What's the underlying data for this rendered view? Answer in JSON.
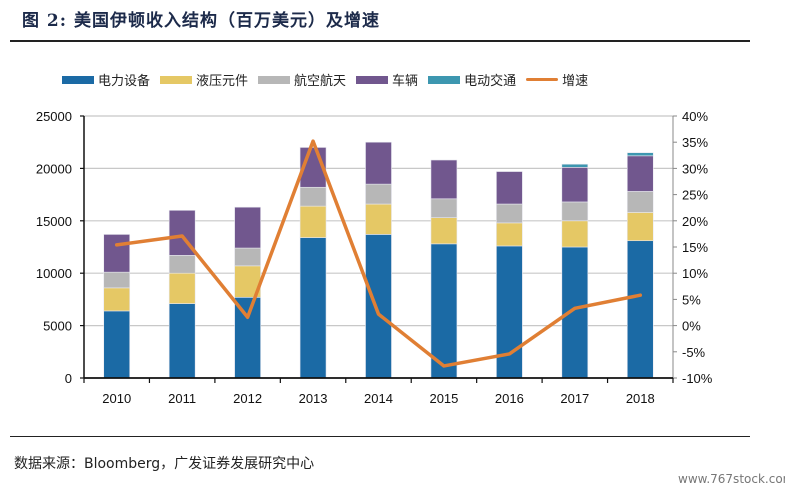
{
  "header": {
    "title": "图 2: 美国伊顿收入结构（百万美元）及增速"
  },
  "footer": {
    "source": "数据来源：Bloomberg，广发证券发展研究中心",
    "watermark": "www.767stock.com"
  },
  "chart_data": {
    "type": "bar",
    "stacked": true,
    "title": "美国伊顿收入结构（百万美元）及增速",
    "xlabel": "",
    "ylabel": "",
    "categories": [
      "2010",
      "2011",
      "2012",
      "2013",
      "2014",
      "2015",
      "2016",
      "2017",
      "2018"
    ],
    "series": [
      {
        "name": "电力设备",
        "type": "bar",
        "axis": "left",
        "color": "#1b6aa5",
        "values": [
          6400,
          7100,
          7700,
          13400,
          13700,
          12800,
          12600,
          12500,
          13100
        ]
      },
      {
        "name": "液压元件",
        "type": "bar",
        "axis": "left",
        "color": "#e5c865",
        "values": [
          2200,
          2900,
          3000,
          3000,
          2900,
          2500,
          2200,
          2500,
          2700
        ]
      },
      {
        "name": "航空航天",
        "type": "bar",
        "axis": "left",
        "color": "#b7b7b7",
        "values": [
          1500,
          1700,
          1700,
          1800,
          1900,
          1800,
          1800,
          1800,
          2000
        ]
      },
      {
        "name": "车辆",
        "type": "bar",
        "axis": "left",
        "color": "#71578e",
        "values": [
          3600,
          4300,
          3900,
          3800,
          4000,
          3700,
          3100,
          3300,
          3400
        ]
      },
      {
        "name": "电动交通",
        "type": "bar",
        "axis": "left",
        "color": "#3d97b0",
        "values": [
          0,
          0,
          0,
          0,
          0,
          0,
          0,
          300,
          300
        ]
      },
      {
        "name": "增速",
        "type": "line",
        "axis": "right",
        "color": "#e07f34",
        "unit": "%",
        "values": [
          15.4,
          17.1,
          1.6,
          35.2,
          2.2,
          -7.7,
          -5.4,
          3.3,
          5.8
        ]
      }
    ],
    "left_axis": {
      "min": 0,
      "max": 25000,
      "ticks": [
        "0",
        "5000",
        "10000",
        "15000",
        "20000",
        "25000"
      ]
    },
    "right_axis": {
      "min": -10,
      "max": 40,
      "ticks": [
        "-10%",
        "-5%",
        "0%",
        "5%",
        "10%",
        "15%",
        "20%",
        "25%",
        "30%",
        "35%",
        "40%"
      ]
    },
    "grid": true,
    "legend_position": "top"
  }
}
